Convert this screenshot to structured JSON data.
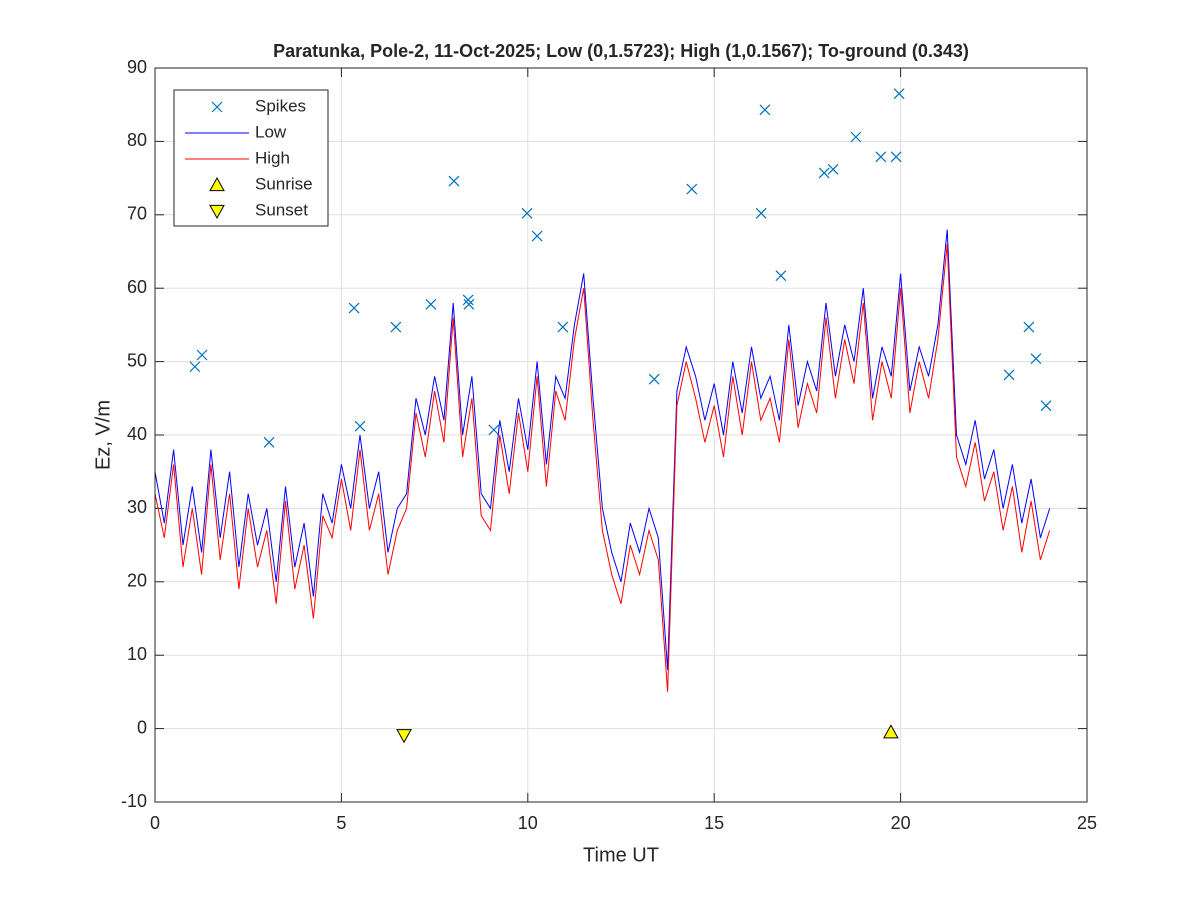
{
  "chart_data": {
    "type": "line",
    "title": "Paratunka, Pole-2, 11-Oct-2025;  Low (0,1.5723); High (1,0.1567); To-ground (0.343)",
    "x_label": "Time UT",
    "y_label": "Ez, V/m",
    "xlim": [
      0,
      25
    ],
    "xticks": [
      0,
      5,
      10,
      15,
      20,
      25
    ],
    "ylim": [
      -10,
      90
    ],
    "yticks": [
      -10,
      0,
      10,
      20,
      30,
      40,
      50,
      60,
      70,
      80,
      90
    ],
    "grid": true,
    "legend": "upper left",
    "x": [
      0,
      0.25,
      0.5,
      0.75,
      1,
      1.25,
      1.5,
      1.75,
      2,
      2.25,
      2.5,
      2.75,
      3,
      3.25,
      3.5,
      3.75,
      4,
      4.25,
      4.5,
      4.75,
      5,
      5.25,
      5.5,
      5.75,
      6,
      6.25,
      6.5,
      6.75,
      7,
      7.25,
      7.5,
      7.75,
      8,
      8.25,
      8.5,
      8.75,
      9,
      9.25,
      9.5,
      9.75,
      10,
      10.25,
      10.5,
      10.75,
      11,
      11.25,
      11.5,
      11.75,
      12,
      12.25,
      12.5,
      12.75,
      13,
      13.25,
      13.5,
      13.75,
      14,
      14.25,
      14.5,
      14.75,
      15,
      15.25,
      15.5,
      15.75,
      16,
      16.25,
      16.5,
      16.75,
      17,
      17.25,
      17.5,
      17.75,
      18,
      18.25,
      18.5,
      18.75,
      19,
      19.25,
      19.5,
      19.75,
      20,
      20.25,
      20.5,
      20.75,
      21,
      21.25,
      21.5,
      21.75,
      22,
      22.25,
      22.5,
      22.75,
      23,
      23.25,
      23.5,
      23.75,
      24
    ],
    "series": [
      {
        "name": "Spikes",
        "kind": "scatter",
        "marker": "x",
        "color": "#0072bd",
        "x": [
          1.07,
          1.26,
          3.06,
          5.34,
          5.5,
          6.46,
          7.4,
          8.02,
          8.4,
          8.42,
          9.09,
          9.98,
          10.25,
          10.94,
          13.39,
          14.4,
          16.26,
          16.36,
          16.79,
          17.95,
          18.19,
          18.8,
          19.47,
          19.88,
          19.96,
          22.91,
          23.44,
          23.63,
          23.9
        ],
        "values": [
          49.3,
          50.9,
          39.0,
          57.3,
          41.2,
          54.7,
          57.8,
          74.6,
          58.4,
          57.8,
          40.7,
          70.2,
          67.1,
          54.7,
          47.6,
          73.5,
          70.2,
          84.3,
          61.7,
          75.7,
          76.2,
          80.6,
          77.9,
          77.9,
          86.5,
          48.2,
          54.7,
          50.4,
          44.0
        ]
      },
      {
        "name": "Low",
        "kind": "line",
        "color": "#0000ff",
        "values": [
          35,
          28,
          38,
          25,
          33,
          24,
          38,
          26,
          35,
          22,
          32,
          25,
          30,
          20,
          33,
          22,
          28,
          18,
          32,
          28,
          36,
          30,
          40,
          30,
          35,
          24,
          30,
          32,
          45,
          40,
          48,
          42,
          58,
          40,
          48,
          32,
          30,
          42,
          35,
          45,
          38,
          50,
          36,
          48,
          45,
          55,
          62,
          45,
          30,
          24,
          20,
          28,
          24,
          30,
          26,
          8,
          46,
          52,
          48,
          42,
          47,
          40,
          50,
          43,
          52,
          45,
          48,
          42,
          55,
          44,
          50,
          46,
          58,
          48,
          55,
          50,
          60,
          45,
          52,
          48,
          62,
          46,
          52,
          48,
          55,
          68,
          40,
          36,
          42,
          34,
          38,
          30,
          36,
          28,
          34,
          26,
          30
        ]
      },
      {
        "name": "High",
        "kind": "line",
        "color": "#ff0000",
        "values": [
          32,
          26,
          36,
          22,
          30,
          21,
          36,
          23,
          32,
          19,
          30,
          22,
          27,
          17,
          31,
          19,
          25,
          15,
          29,
          26,
          34,
          27,
          38,
          27,
          32,
          21,
          27,
          30,
          43,
          37,
          46,
          39,
          56,
          37,
          45,
          29,
          27,
          40,
          32,
          43,
          35,
          48,
          33,
          46,
          42,
          53,
          60,
          42,
          27,
          21,
          17,
          25,
          21,
          27,
          23,
          5,
          44,
          50,
          45,
          39,
          44,
          37,
          48,
          40,
          50,
          42,
          45,
          39,
          53,
          41,
          47,
          43,
          56,
          45,
          53,
          47,
          58,
          42,
          50,
          45,
          60,
          43,
          50,
          45,
          53,
          66,
          37,
          33,
          39,
          31,
          35,
          27,
          33,
          24,
          31,
          23,
          27
        ]
      },
      {
        "name": "Sunrise",
        "kind": "scatter",
        "marker": "^",
        "color": "#ffff00",
        "x": [
          19.74
        ],
        "values": [
          -0.5
        ]
      },
      {
        "name": "Sunset",
        "kind": "scatter",
        "marker": "v",
        "color": "#ffff00",
        "x": [
          6.68
        ],
        "values": [
          -0.9
        ]
      }
    ]
  }
}
